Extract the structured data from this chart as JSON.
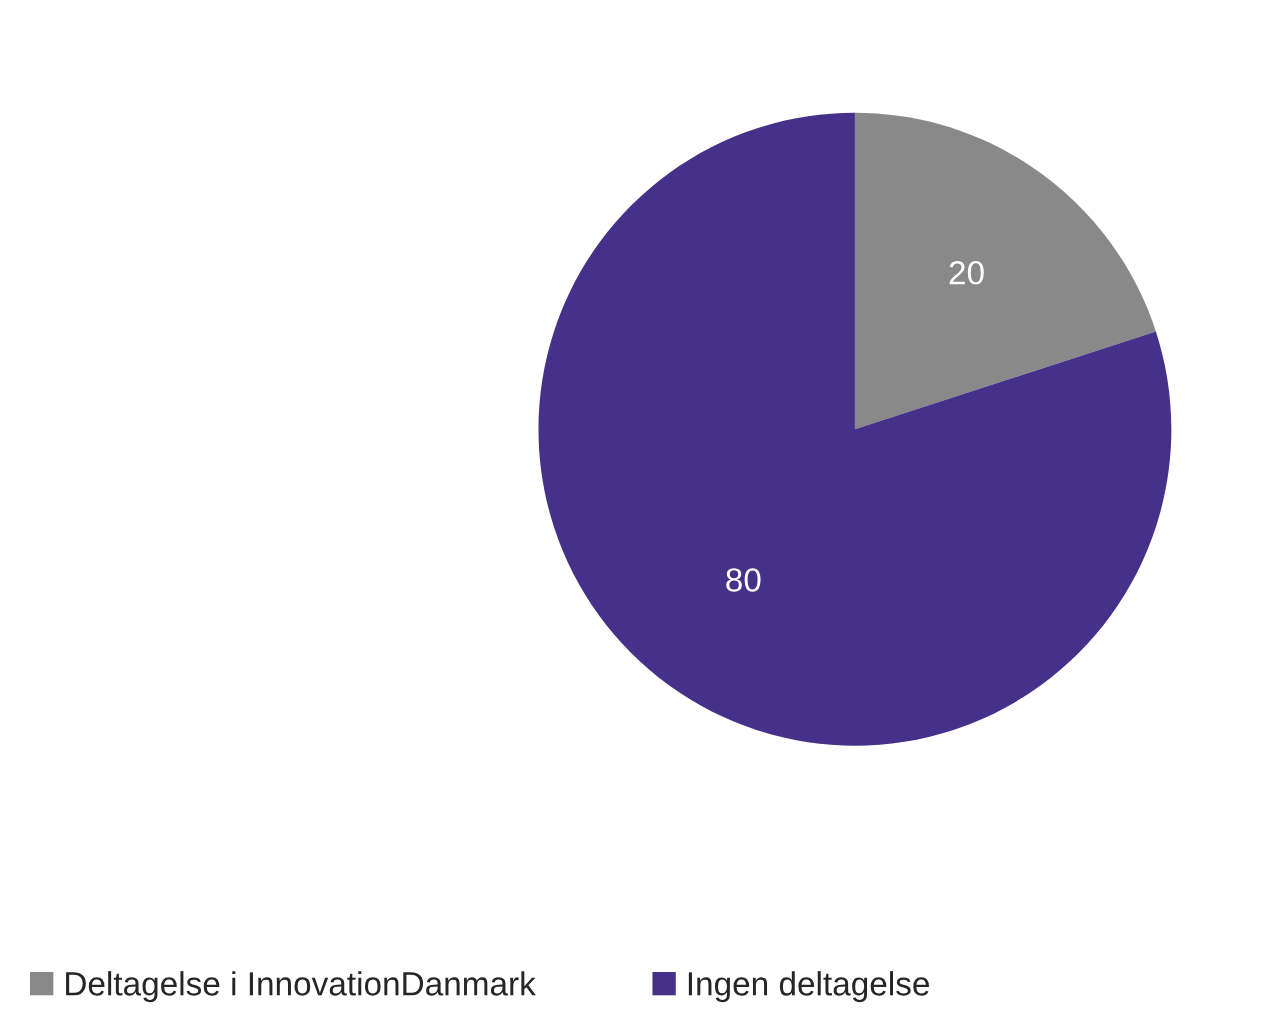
{
  "chart_data": {
    "type": "pie",
    "categories": [
      "Deltagelse i InnovationDanmark",
      "Ingen deltagelse"
    ],
    "values": [
      20,
      80
    ],
    "colors": [
      "#898989",
      "#45318a"
    ],
    "data_labels": true,
    "legend": "bottom left"
  }
}
